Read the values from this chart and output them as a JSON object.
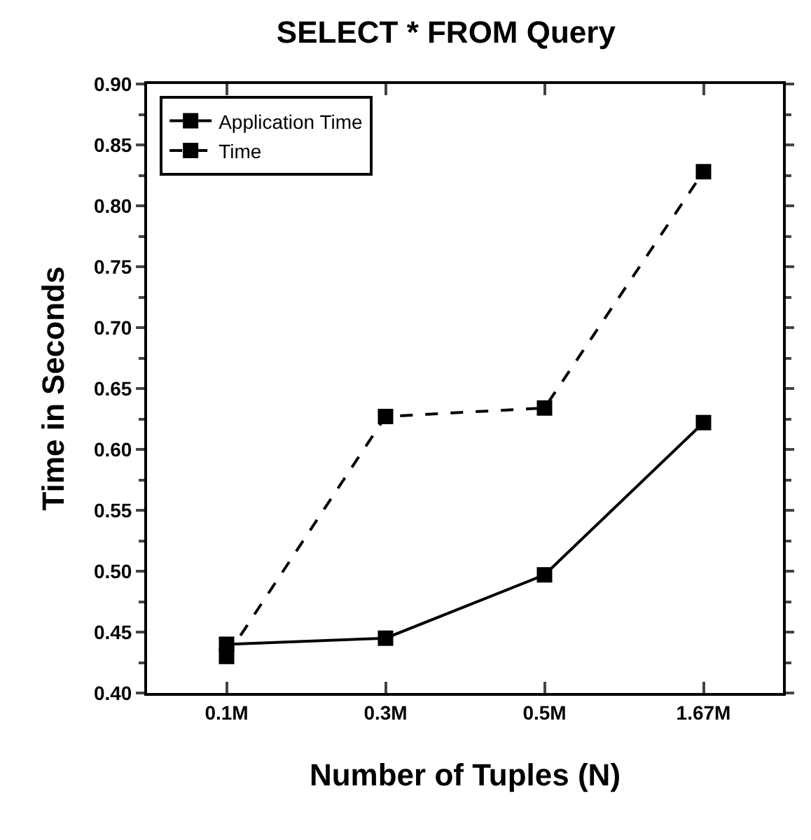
{
  "chart_data": {
    "type": "line",
    "title": "SELECT * FROM Query",
    "xlabel": "Number of Tuples (N)",
    "ylabel": "Time in Seconds",
    "categories": [
      "0.1M",
      "0.3M",
      "0.5M",
      "1.67M"
    ],
    "series": [
      {
        "name": "Application Time",
        "color": "#000000",
        "values": [
          0.44,
          0.445,
          0.497,
          0.622
        ],
        "line_style": "solid"
      },
      {
        "name": "Time",
        "color": "#000000",
        "values": [
          0.43,
          0.627,
          0.634,
          0.828
        ],
        "line_style": "dashed"
      }
    ],
    "ylim": [
      0.4,
      0.9
    ],
    "yticks": [
      {
        "value": 0.4,
        "label": "0.40"
      },
      0.45,
      {
        "value": 0.5,
        "label": "0.50"
      },
      0.55,
      {
        "value": 0.6,
        "label": "0.60"
      },
      0.65,
      {
        "value": 0.7,
        "label": "0.70"
      },
      0.75,
      {
        "value": 0.8,
        "label": "0.80"
      },
      0.85,
      {
        "value": 0.9,
        "label": "0.90"
      }
    ],
    "marker": "square",
    "legend": "top left"
  }
}
